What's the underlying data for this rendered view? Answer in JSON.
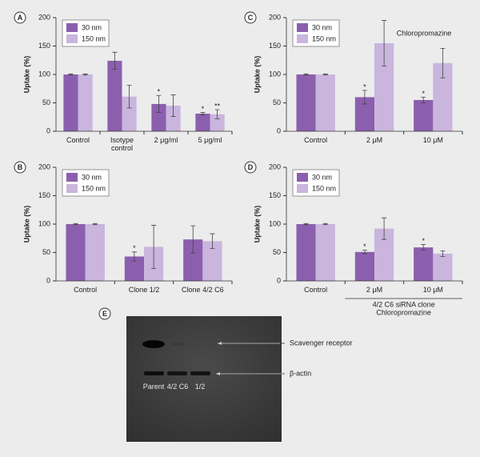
{
  "chart_data": [
    {
      "type": "bar",
      "panel": "A",
      "ylabel": "Uptake (%)",
      "categories": [
        "Control",
        "Isotype control",
        "2 μg/ml",
        "5 μg/ml"
      ],
      "series": [
        {
          "name": "30 nm",
          "color": "#8b5fae",
          "values": [
            100,
            124,
            48,
            31
          ],
          "errors": [
            1,
            15,
            15,
            2
          ],
          "markers": [
            null,
            null,
            "*",
            "*"
          ]
        },
        {
          "name": "150 nm",
          "color": "#c9b5dd",
          "values": [
            100,
            61,
            45,
            30
          ],
          "errors": [
            1,
            20,
            19,
            8
          ],
          "markers": [
            null,
            null,
            null,
            "**"
          ]
        }
      ],
      "ylim": [
        0,
        200
      ],
      "yticks": [
        0,
        50,
        100,
        150,
        200
      ],
      "legend": "upper left"
    },
    {
      "type": "bar",
      "panel": "C",
      "ylabel": "Uptake (%)",
      "categories": [
        "Control",
        "2 μM",
        "10 μM"
      ],
      "series": [
        {
          "name": "30 nm",
          "color": "#8b5fae",
          "values": [
            100,
            60,
            55
          ],
          "errors": [
            1,
            12,
            5
          ],
          "markers": [
            null,
            "*",
            "*"
          ]
        },
        {
          "name": "150 nm",
          "color": "#c9b5dd",
          "values": [
            100,
            155,
            120
          ],
          "errors": [
            1,
            40,
            26
          ],
          "markers": [
            null,
            null,
            null
          ]
        }
      ],
      "annotations": [
        "Chloropromazine"
      ],
      "ylim": [
        0,
        200
      ],
      "yticks": [
        0,
        50,
        100,
        150,
        200
      ],
      "legend": "upper left"
    },
    {
      "type": "bar",
      "panel": "B",
      "ylabel": "Uptake (%)",
      "categories": [
        "Control",
        "Clone 1/2",
        "Clone 4/2 C6"
      ],
      "series": [
        {
          "name": "30 nm",
          "color": "#8b5fae",
          "values": [
            100,
            43,
            73
          ],
          "errors": [
            1,
            8,
            24
          ],
          "markers": [
            null,
            "*",
            null
          ]
        },
        {
          "name": "150 nm",
          "color": "#c9b5dd",
          "values": [
            100,
            60,
            70
          ],
          "errors": [
            1,
            38,
            13
          ],
          "markers": [
            null,
            null,
            null
          ]
        }
      ],
      "ylim": [
        0,
        200
      ],
      "yticks": [
        0,
        50,
        100,
        150,
        200
      ],
      "legend": "upper left"
    },
    {
      "type": "bar",
      "panel": "D",
      "ylabel": "Uptake (%)",
      "categories": [
        "Control",
        "2 μM",
        "10 μM"
      ],
      "series": [
        {
          "name": "30 nm",
          "color": "#8b5fae",
          "values": [
            100,
            51,
            59
          ],
          "errors": [
            1,
            3,
            5
          ],
          "markers": [
            null,
            "*",
            "*"
          ]
        },
        {
          "name": "150 nm",
          "color": "#c9b5dd",
          "values": [
            100,
            92,
            48
          ],
          "errors": [
            1,
            19,
            5
          ],
          "markers": [
            null,
            null,
            null
          ]
        }
      ],
      "annotations": [
        "4/2 C6 siRNA clone",
        "Chloropromazine"
      ],
      "ylim": [
        0,
        200
      ],
      "yticks": [
        0,
        50,
        100,
        150,
        200
      ],
      "legend": "upper left"
    }
  ],
  "blot": {
    "panel": "E",
    "lanes": [
      "Parent",
      "4/2 C6",
      "1/2"
    ],
    "bands": [
      "Scavenger receptor",
      "β-actin"
    ]
  }
}
